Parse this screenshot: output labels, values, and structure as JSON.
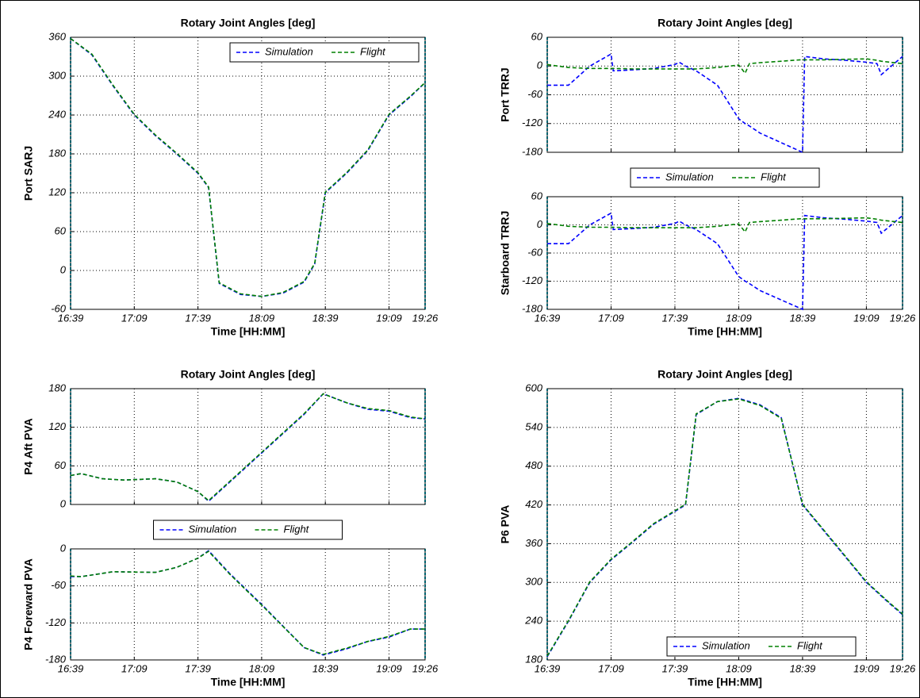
{
  "chart_data": [
    {
      "type": "line",
      "title": "Rotary Joint Angles [deg]",
      "ylabel": "Port SARJ",
      "xlabel": "Time [HH:MM]",
      "legend": "upper right",
      "grid": true,
      "x": [
        999,
        1009,
        1019,
        1029,
        1039,
        1049,
        1059,
        1064,
        1069,
        1079,
        1089,
        1099,
        1109,
        1114,
        1119,
        1129,
        1139,
        1149,
        1159,
        1166
      ],
      "xlim": [
        999,
        1166
      ],
      "xticks": [
        {
          "value": 999,
          "label": "16:39"
        },
        {
          "value": 1029,
          "label": "17:09"
        },
        {
          "value": 1059,
          "label": "17:39"
        },
        {
          "value": 1089,
          "label": "18:09"
        },
        {
          "value": 1119,
          "label": "18:39"
        },
        {
          "value": 1149,
          "label": "19:09"
        },
        {
          "value": 1166,
          "label": "19:26"
        }
      ],
      "ylim": [
        -60,
        360
      ],
      "yticks": [
        -60,
        0,
        60,
        120,
        180,
        240,
        300,
        360
      ],
      "series": [
        {
          "name": "Simulation",
          "color": "#0000ff",
          "values": [
            358,
            333,
            285,
            240,
            208,
            180,
            150,
            128,
            -20,
            -37,
            -40,
            -35,
            -18,
            10,
            120,
            150,
            185,
            240,
            268,
            290
          ]
        },
        {
          "name": "Flight",
          "color": "#008000",
          "values": [
            358,
            334,
            286,
            241,
            209,
            181,
            151,
            129,
            -19,
            -36,
            -40,
            -34,
            -17,
            11,
            121,
            151,
            186,
            241,
            269,
            290
          ]
        }
      ]
    },
    {
      "type": "line",
      "title": "Rotary Joint Angles [deg]",
      "ylabel": "Port TRRJ",
      "legend": "below",
      "grid": true,
      "show_xtick_labels": false,
      "x": [
        999,
        1009,
        1019,
        1029,
        1030,
        1039,
        1049,
        1059,
        1061,
        1064,
        1069,
        1079,
        1089,
        1092,
        1094,
        1099,
        1109,
        1118,
        1119,
        1120,
        1129,
        1139,
        1149,
        1154,
        1156,
        1166
      ],
      "xlim": [
        999,
        1166
      ],
      "xticks": [
        999,
        1029,
        1059,
        1089,
        1119,
        1149,
        1166
      ],
      "ylim": [
        -180,
        60
      ],
      "yticks": [
        -180,
        -120,
        -60,
        0,
        60
      ],
      "series": [
        {
          "name": "Simulation",
          "color": "#0000ff",
          "values": [
            -40,
            -40,
            0,
            25,
            -10,
            -8,
            -5,
            3,
            8,
            0,
            -10,
            -40,
            -110,
            -120,
            -125,
            -140,
            -160,
            -178,
            -180,
            20,
            15,
            12,
            8,
            5,
            -18,
            20
          ]
        },
        {
          "name": "Flight",
          "color": "#008000",
          "values": [
            3,
            -3,
            -5,
            -5,
            -5,
            -6,
            -6,
            -6,
            -6,
            -6,
            -6,
            -3,
            2,
            -15,
            5,
            7,
            10,
            13,
            13,
            13,
            13,
            14,
            15,
            12,
            10,
            5
          ]
        }
      ]
    },
    {
      "type": "line",
      "ylabel": "Starboard TRRJ",
      "xlabel": "Time [HH:MM]",
      "grid": true,
      "x": [
        999,
        1009,
        1019,
        1029,
        1030,
        1039,
        1049,
        1059,
        1061,
        1064,
        1069,
        1079,
        1089,
        1092,
        1094,
        1099,
        1109,
        1118,
        1119,
        1120,
        1129,
        1139,
        1149,
        1154,
        1156,
        1166
      ],
      "xlim": [
        999,
        1166
      ],
      "xticks": [
        {
          "value": 999,
          "label": "16:39"
        },
        {
          "value": 1029,
          "label": "17:09"
        },
        {
          "value": 1059,
          "label": "17:39"
        },
        {
          "value": 1089,
          "label": "18:09"
        },
        {
          "value": 1119,
          "label": "18:39"
        },
        {
          "value": 1149,
          "label": "19:09"
        },
        {
          "value": 1166,
          "label": "19:26"
        }
      ],
      "ylim": [
        -180,
        60
      ],
      "yticks": [
        -180,
        -120,
        -60,
        0,
        60
      ],
      "series": [
        {
          "color": "#0000ff",
          "values": [
            -40,
            -40,
            0,
            25,
            -10,
            -8,
            -5,
            3,
            8,
            0,
            -10,
            -40,
            -110,
            -120,
            -125,
            -140,
            -160,
            -178,
            -180,
            20,
            15,
            12,
            8,
            5,
            -18,
            20
          ]
        },
        {
          "color": "#008000",
          "values": [
            3,
            -3,
            -5,
            -5,
            -5,
            -6,
            -6,
            -6,
            -6,
            -6,
            -6,
            -3,
            2,
            -15,
            5,
            7,
            10,
            13,
            13,
            13,
            13,
            14,
            15,
            12,
            10,
            5
          ]
        }
      ]
    },
    {
      "type": "line",
      "title": "Rotary Joint Angles [deg]",
      "ylabel": "P4 Aft PVA",
      "legend": "below",
      "grid": true,
      "show_xtick_labels": false,
      "x": [
        999,
        1004,
        1014,
        1024,
        1039,
        1049,
        1059,
        1064,
        1069,
        1089,
        1109,
        1118,
        1129,
        1139,
        1149,
        1159,
        1166
      ],
      "xlim": [
        999,
        1166
      ],
      "xticks": [
        999,
        1029,
        1059,
        1089,
        1119,
        1149,
        1166
      ],
      "ylim": [
        0,
        180
      ],
      "yticks": [
        0,
        60,
        120,
        180
      ],
      "series": [
        {
          "name": "Simulation",
          "color": "#0000ff",
          "values": [
            45,
            48,
            40,
            38,
            40,
            35,
            20,
            5,
            20,
            80,
            140,
            172,
            158,
            148,
            145,
            135,
            133
          ]
        },
        {
          "name": "Flight",
          "color": "#008000",
          "values": [
            45,
            48,
            40,
            38,
            40,
            35,
            20,
            6,
            21,
            81,
            141,
            172,
            158,
            149,
            146,
            136,
            133
          ]
        }
      ]
    },
    {
      "type": "line",
      "ylabel": "P4 Foreward PVA",
      "xlabel": "Time [HH:MM]",
      "grid": true,
      "x": [
        999,
        1004,
        1019,
        1039,
        1049,
        1059,
        1064,
        1074,
        1089,
        1109,
        1118,
        1129,
        1139,
        1149,
        1159,
        1166
      ],
      "xlim": [
        999,
        1166
      ],
      "xticks": [
        {
          "value": 999,
          "label": "16:39"
        },
        {
          "value": 1029,
          "label": "17:09"
        },
        {
          "value": 1059,
          "label": "17:39"
        },
        {
          "value": 1089,
          "label": "18:09"
        },
        {
          "value": 1119,
          "label": "18:39"
        },
        {
          "value": 1149,
          "label": "19:09"
        },
        {
          "value": 1166,
          "label": "19:26"
        }
      ],
      "ylim": [
        -180,
        0
      ],
      "yticks": [
        -180,
        -120,
        -60,
        0
      ],
      "series": [
        {
          "color": "#0000ff",
          "values": [
            -45,
            -45,
            -37,
            -38,
            -30,
            -15,
            -3,
            -40,
            -90,
            -160,
            -172,
            -162,
            -150,
            -143,
            -130,
            -130
          ]
        },
        {
          "color": "#008000",
          "values": [
            -44,
            -45,
            -37,
            -38,
            -30,
            -15,
            -4,
            -41,
            -91,
            -160,
            -171,
            -161,
            -150,
            -142,
            -130,
            -130
          ]
        }
      ]
    },
    {
      "type": "line",
      "title": "Rotary Joint Angles [deg]",
      "ylabel": "P6 PVA",
      "xlabel": "Time [HH:MM]",
      "legend": "lower center",
      "grid": true,
      "x": [
        999,
        1009,
        1019,
        1029,
        1039,
        1049,
        1059,
        1064,
        1069,
        1079,
        1089,
        1099,
        1109,
        1119,
        1129,
        1139,
        1149,
        1159,
        1166
      ],
      "xlim": [
        999,
        1166
      ],
      "xticks": [
        {
          "value": 999,
          "label": "16:39"
        },
        {
          "value": 1029,
          "label": "17:09"
        },
        {
          "value": 1059,
          "label": "17:39"
        },
        {
          "value": 1089,
          "label": "18:09"
        },
        {
          "value": 1119,
          "label": "18:39"
        },
        {
          "value": 1149,
          "label": "19:09"
        },
        {
          "value": 1166,
          "label": "19:26"
        }
      ],
      "ylim": [
        180,
        600
      ],
      "yticks": [
        180,
        240,
        300,
        360,
        420,
        480,
        540,
        600
      ],
      "series": [
        {
          "name": "Simulation",
          "color": "#0000ff",
          "values": [
            185,
            240,
            300,
            335,
            362,
            390,
            410,
            420,
            560,
            580,
            585,
            575,
            555,
            420,
            380,
            340,
            300,
            270,
            250
          ]
        },
        {
          "name": "Flight",
          "color": "#008000",
          "values": [
            186,
            241,
            301,
            336,
            363,
            391,
            411,
            421,
            561,
            580,
            584,
            574,
            554,
            421,
            381,
            341,
            301,
            271,
            251
          ]
        }
      ]
    }
  ]
}
